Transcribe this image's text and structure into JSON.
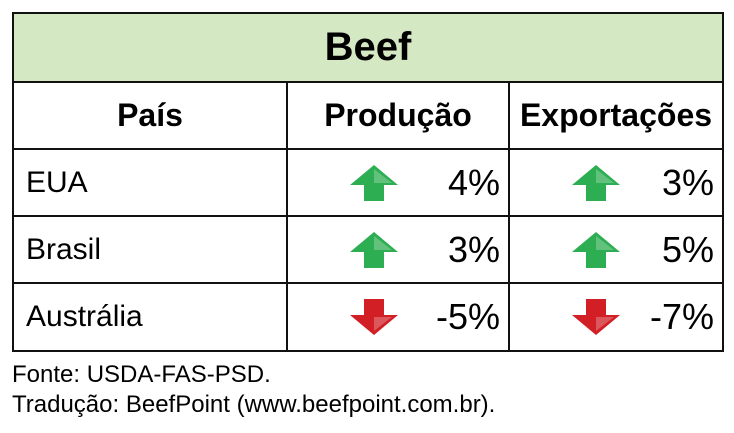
{
  "title": "Beef",
  "headers": {
    "country": "País",
    "production": "Produção",
    "exports": "Exportações"
  },
  "rows": [
    {
      "country": "EUA",
      "production": {
        "value": "4%",
        "direction": "up"
      },
      "exports": {
        "value": "3%",
        "direction": "up"
      }
    },
    {
      "country": "Brasil",
      "production": {
        "value": "3%",
        "direction": "up"
      },
      "exports": {
        "value": "5%",
        "direction": "up"
      }
    },
    {
      "country": "Austrália",
      "production": {
        "value": "-5%",
        "direction": "down"
      },
      "exports": {
        "value": "-7%",
        "direction": "down"
      }
    }
  ],
  "footer": {
    "source": "Fonte: USDA-FAS-PSD.",
    "translation": "Tradução: BeefPoint (www.beefpoint.com.br)."
  },
  "colors": {
    "title_bg": "#d5e8c4",
    "arrow_up": "#2eae52",
    "arrow_down": "#d11f25"
  },
  "icons": {
    "up": "arrow-up-icon",
    "down": "arrow-down-icon"
  }
}
